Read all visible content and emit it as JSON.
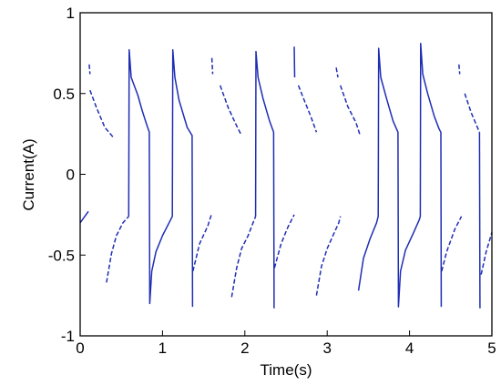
{
  "chart_data": {
    "type": "line",
    "title": "",
    "xlabel": "Time(s)",
    "ylabel": "Current(A)",
    "xlim": [
      0,
      5
    ],
    "ylim": [
      -1,
      1
    ],
    "xticks": [
      {
        "value": 0,
        "label": "0"
      },
      {
        "value": 1,
        "label": "1"
      },
      {
        "value": 2,
        "label": "2"
      },
      {
        "value": 3,
        "label": "3"
      },
      {
        "value": 4,
        "label": "4"
      },
      {
        "value": 5,
        "label": "5"
      }
    ],
    "yticks": [
      {
        "value": 1,
        "label": "1"
      },
      {
        "value": 0.5,
        "label": "0.5"
      },
      {
        "value": 0,
        "label": "0"
      },
      {
        "value": -0.5,
        "label": "-0.5"
      },
      {
        "value": -1,
        "label": "-1"
      }
    ],
    "grid": false,
    "line_color": "#1f2db4",
    "series": [
      {
        "segments": [
          {
            "style": "solid",
            "points": [
              [
                0.0,
                -0.3
              ],
              [
                0.1,
                -0.23
              ]
            ]
          },
          {
            "style": "dashed",
            "points": [
              [
                0.11,
                0.68
              ],
              [
                0.12,
                0.62
              ]
            ]
          },
          {
            "style": "dashed",
            "points": [
              [
                0.12,
                0.52
              ],
              [
                0.2,
                0.41
              ],
              [
                0.3,
                0.29
              ],
              [
                0.4,
                0.23
              ]
            ]
          },
          {
            "style": "dashed",
            "points": [
              [
                0.32,
                -0.67
              ],
              [
                0.38,
                -0.49
              ],
              [
                0.44,
                -0.38
              ],
              [
                0.52,
                -0.3
              ],
              [
                0.59,
                -0.26
              ]
            ]
          },
          {
            "style": "solid",
            "points": [
              [
                0.59,
                -0.26
              ],
              [
                0.595,
                0.77
              ],
              [
                0.62,
                0.6
              ],
              [
                0.7,
                0.49
              ],
              [
                0.75,
                0.4
              ],
              [
                0.8,
                0.32
              ],
              [
                0.84,
                0.26
              ],
              [
                0.845,
                -0.8
              ],
              [
                0.87,
                -0.6
              ],
              [
                0.92,
                -0.48
              ],
              [
                1.0,
                -0.38
              ],
              [
                1.08,
                -0.3
              ],
              [
                1.12,
                -0.26
              ],
              [
                1.125,
                0.77
              ],
              [
                1.15,
                0.6
              ],
              [
                1.2,
                0.46
              ],
              [
                1.3,
                0.29
              ],
              [
                1.36,
                0.24
              ],
              [
                1.365,
                -0.82
              ]
            ]
          },
          {
            "style": "dashed",
            "points": [
              [
                1.37,
                -0.6
              ],
              [
                1.45,
                -0.43
              ],
              [
                1.55,
                -0.32
              ],
              [
                1.6,
                -0.24
              ]
            ]
          },
          {
            "style": "dashed",
            "points": [
              [
                1.6,
                0.72
              ],
              [
                1.61,
                0.62
              ]
            ]
          },
          {
            "style": "dashed",
            "points": [
              [
                1.7,
                0.55
              ],
              [
                1.8,
                0.41
              ],
              [
                1.9,
                0.3
              ],
              [
                1.96,
                0.24
              ]
            ]
          },
          {
            "style": "dashed",
            "points": [
              [
                1.84,
                -0.76
              ],
              [
                1.9,
                -0.58
              ],
              [
                1.96,
                -0.46
              ],
              [
                2.04,
                -0.38
              ],
              [
                2.1,
                -0.3
              ],
              [
                2.13,
                -0.26
              ]
            ]
          },
          {
            "style": "solid",
            "points": [
              [
                2.13,
                -0.26
              ],
              [
                2.135,
                0.76
              ],
              [
                2.16,
                0.6
              ],
              [
                2.22,
                0.47
              ],
              [
                2.3,
                0.33
              ],
              [
                2.35,
                0.26
              ],
              [
                2.355,
                -0.83
              ]
            ]
          },
          {
            "style": "dashed",
            "points": [
              [
                2.36,
                -0.58
              ],
              [
                2.44,
                -0.43
              ],
              [
                2.52,
                -0.33
              ],
              [
                2.6,
                -0.25
              ]
            ]
          },
          {
            "style": "solid",
            "points": [
              [
                2.6,
                0.79
              ],
              [
                2.605,
                0.6
              ]
            ]
          },
          {
            "style": "dashed",
            "points": [
              [
                2.65,
                0.55
              ],
              [
                2.72,
                0.46
              ],
              [
                2.8,
                0.36
              ],
              [
                2.87,
                0.26
              ]
            ]
          },
          {
            "style": "dashed",
            "points": [
              [
                2.87,
                -0.75
              ],
              [
                2.93,
                -0.57
              ],
              [
                3.0,
                -0.46
              ],
              [
                3.07,
                -0.38
              ],
              [
                3.14,
                -0.3
              ],
              [
                3.16,
                -0.26
              ]
            ]
          },
          {
            "style": "dashed",
            "points": [
              [
                3.11,
                0.66
              ],
              [
                3.13,
                0.6
              ]
            ]
          },
          {
            "style": "dashed",
            "points": [
              [
                3.16,
                0.55
              ],
              [
                3.25,
                0.42
              ],
              [
                3.35,
                0.32
              ],
              [
                3.4,
                0.24
              ]
            ]
          },
          {
            "style": "solid",
            "points": [
              [
                3.38,
                -0.72
              ],
              [
                3.44,
                -0.52
              ],
              [
                3.52,
                -0.4
              ],
              [
                3.6,
                -0.3
              ],
              [
                3.62,
                -0.26
              ],
              [
                3.625,
                0.78
              ],
              [
                3.65,
                0.6
              ],
              [
                3.72,
                0.47
              ],
              [
                3.8,
                0.33
              ],
              [
                3.86,
                0.26
              ],
              [
                3.865,
                -0.82
              ],
              [
                3.89,
                -0.6
              ],
              [
                3.95,
                -0.47
              ],
              [
                4.05,
                -0.36
              ],
              [
                4.12,
                -0.28
              ],
              [
                4.13,
                -0.26
              ],
              [
                4.135,
                0.81
              ],
              [
                4.16,
                0.62
              ],
              [
                4.22,
                0.5
              ],
              [
                4.3,
                0.36
              ],
              [
                4.36,
                0.28
              ],
              [
                4.38,
                0.26
              ],
              [
                4.385,
                -0.82
              ]
            ]
          },
          {
            "style": "dashed",
            "points": [
              [
                4.39,
                -0.6
              ],
              [
                4.45,
                -0.48
              ],
              [
                4.55,
                -0.34
              ],
              [
                4.63,
                -0.26
              ]
            ]
          },
          {
            "style": "dashed",
            "points": [
              [
                4.6,
                0.68
              ],
              [
                4.61,
                0.62
              ]
            ]
          },
          {
            "style": "dashed",
            "points": [
              [
                4.67,
                0.5
              ],
              [
                4.75,
                0.38
              ],
              [
                4.85,
                0.26
              ]
            ]
          },
          {
            "style": "solid",
            "points": [
              [
                4.85,
                0.26
              ],
              [
                4.855,
                -0.83
              ]
            ]
          },
          {
            "style": "dashed",
            "points": [
              [
                4.87,
                -0.62
              ],
              [
                4.93,
                -0.48
              ],
              [
                5.0,
                -0.36
              ]
            ]
          }
        ]
      }
    ]
  }
}
